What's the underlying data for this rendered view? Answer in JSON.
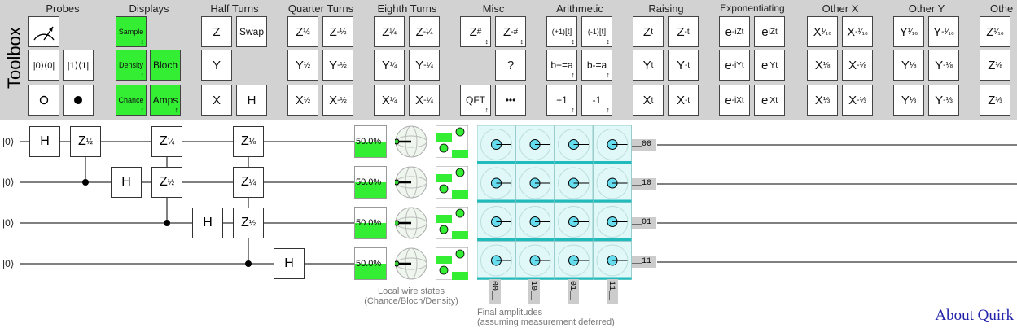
{
  "toolbox": {
    "title": "Toolbox",
    "groups": [
      {
        "title": "Probes"
      },
      {
        "title": "Displays"
      },
      {
        "title": "Half Turns"
      },
      {
        "title": "Quarter Turns"
      },
      {
        "title": "Eighth Turns"
      },
      {
        "title": "Misc"
      },
      {
        "title": "Arithmetic"
      },
      {
        "title": "Raising"
      },
      {
        "title": "Exponentiating"
      },
      {
        "title": "Other X"
      },
      {
        "title": "Other Y"
      },
      {
        "title": "Othe"
      }
    ],
    "gates": {
      "probe_ket0": "|0⟩⟨0|",
      "probe_ket1": "|1⟩⟨1|",
      "sample": "Sample",
      "density": "Density",
      "bloch": "Bloch",
      "chance": "Chance",
      "amps": "Amps",
      "z": "Z",
      "swap": "Swap",
      "y": "Y",
      "x": "X",
      "h": "H",
      "qft": "QFT",
      "misc_dots": "•••",
      "misc_q": "?",
      "b_plus": "b+=a",
      "b_minus": "b-=a",
      "plus1": "+1",
      "minus1": "-1",
      "plus1_t": "(+1)",
      "minus1_t": "(-1)"
    }
  },
  "circuit": {
    "wire_labels": [
      "|0⟩",
      "|0⟩",
      "|0⟩",
      "|0⟩"
    ],
    "gate_h": "H",
    "gate_z": "Z",
    "chance_values": [
      "50.0%",
      "50.0%",
      "50.0%",
      "50.0%"
    ],
    "chance_fraction": 0.5,
    "row_labels": [
      "__00",
      "__10",
      "__01",
      "__11"
    ],
    "col_labels": [
      "00__",
      "10__",
      "01__",
      "11__"
    ],
    "caption_local": [
      "Local wire states",
      "(Chance/Bloch/Density)"
    ],
    "caption_final": [
      "Final amplitudes",
      "(assuming measurement deferred)"
    ]
  },
  "about": "About Quirk",
  "colors": {
    "green": "#33ee33",
    "amp_cell": "#e0f8f8",
    "amp_dot": "#66ddee",
    "toolbox_bg": "#d2d2d2"
  }
}
